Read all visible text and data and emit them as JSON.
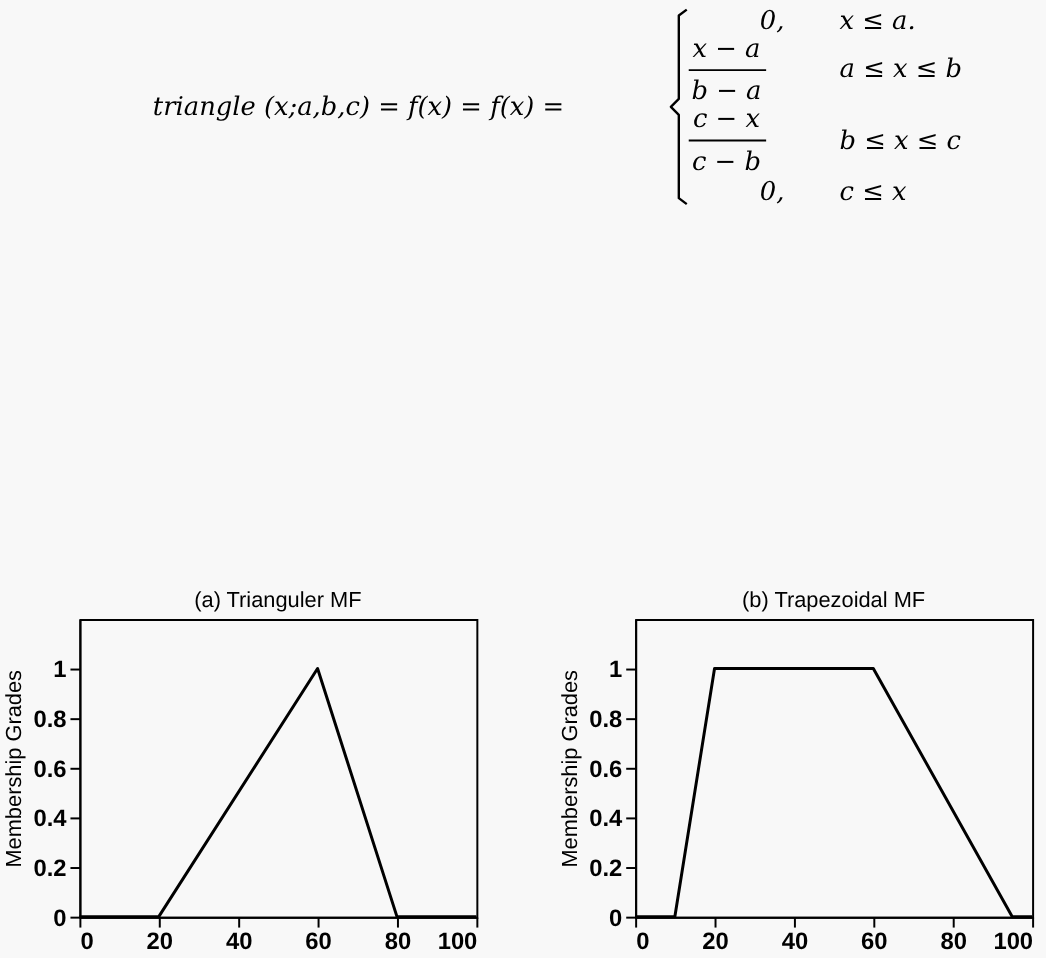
{
  "chart_data": [
    {
      "type": "other",
      "annotations": [
        "triangle (x;a,b,c) =  f(x) = f(x) =",
        "0,",
        "x ≤ a.",
        "x − a",
        "b − a",
        "a ≤ x ≤ b",
        "c − x",
        "c − b",
        "b ≤ x ≤ c",
        "0,",
        "c ≤ x"
      ]
    },
    {
      "type": "line",
      "title": "(a) Trianguler MF",
      "ylabel": "Membership Grades",
      "x": [
        0,
        20,
        60,
        80,
        100
      ],
      "series": [
        {
          "color": "#000000",
          "values": [
            0,
            0,
            1,
            0,
            0
          ]
        }
      ],
      "xlim": [
        0,
        100
      ],
      "xticks": [
        0,
        20,
        40,
        60,
        80,
        100
      ],
      "ylim": [
        0,
        1.2
      ],
      "yticks": [
        0,
        0.2,
        0.4,
        0.6,
        0.8,
        1
      ],
      "grid": false,
      "legend": false,
      "marker": "none",
      "line_style": "solid"
    },
    {
      "type": "line",
      "title": "(b) Trapezoidal MF",
      "ylabel": "Membership Grades",
      "x": [
        0,
        10,
        20,
        60,
        95,
        100
      ],
      "series": [
        {
          "color": "#000000",
          "values": [
            0,
            0,
            1,
            1,
            0,
            0
          ]
        }
      ],
      "xlim": [
        0,
        100
      ],
      "xticks": [
        0,
        20,
        40,
        60,
        80,
        100
      ],
      "ylim": [
        0,
        1.2
      ],
      "yticks": [
        0,
        0.2,
        0.4,
        0.6,
        0.8,
        1
      ],
      "grid": false,
      "legend": false,
      "marker": "none",
      "line_style": "solid"
    }
  ]
}
